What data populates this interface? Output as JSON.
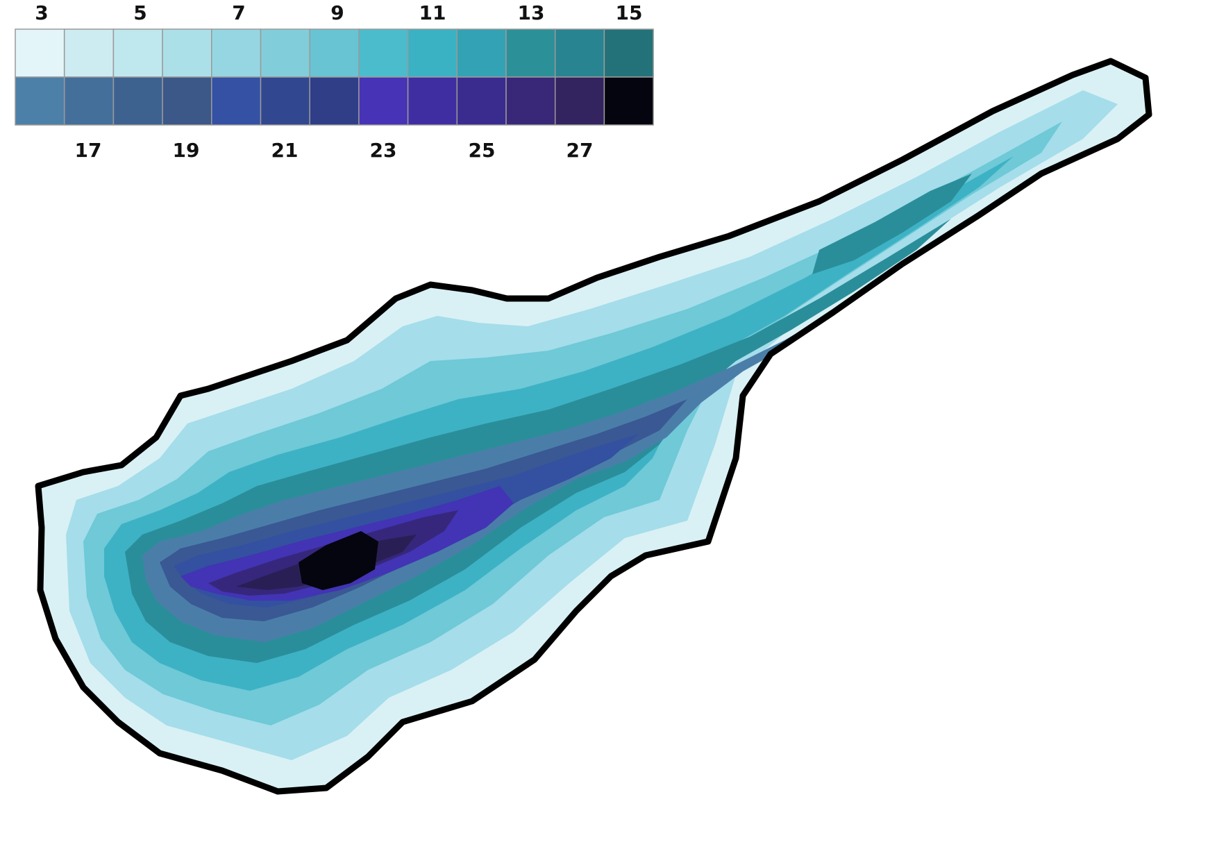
{
  "legend": {
    "top_labels": [
      "3",
      "5",
      "7",
      "9",
      "11",
      "13",
      "15"
    ],
    "bottom_labels": [
      "17",
      "19",
      "21",
      "23",
      "25",
      "27"
    ],
    "top_row_colors": [
      "#e3f5f8",
      "#cdecf1",
      "#bfe7ee",
      "#ace0e9",
      "#96d6e2",
      "#81ceda",
      "#68c4d3",
      "#4bbccc",
      "#3ab2c4",
      "#33a2b4",
      "#2c9099",
      "#288490",
      "#23727a"
    ],
    "bottom_row_colors": [
      "#4d80a8",
      "#456f9b",
      "#3e6290",
      "#3c5888",
      "#3451a4",
      "#31478f",
      "#2f3e86",
      "#4733b6",
      "#3f2ea2",
      "#3a2b8f",
      "#392777",
      "#33235f",
      "#05050f"
    ]
  },
  "map": {
    "outline_color": "#000000",
    "zone_colors": [
      "#d9f1f5",
      "#a5ddea",
      "#6fc9d7",
      "#3db2c4",
      "#2a8e9a",
      "#4a7ea8",
      "#3a5894",
      "#3450a0",
      "#4234b4",
      "#36277c",
      "#2a1f55",
      "#05050f"
    ]
  },
  "colors": {
    "background": "#ffffff"
  }
}
